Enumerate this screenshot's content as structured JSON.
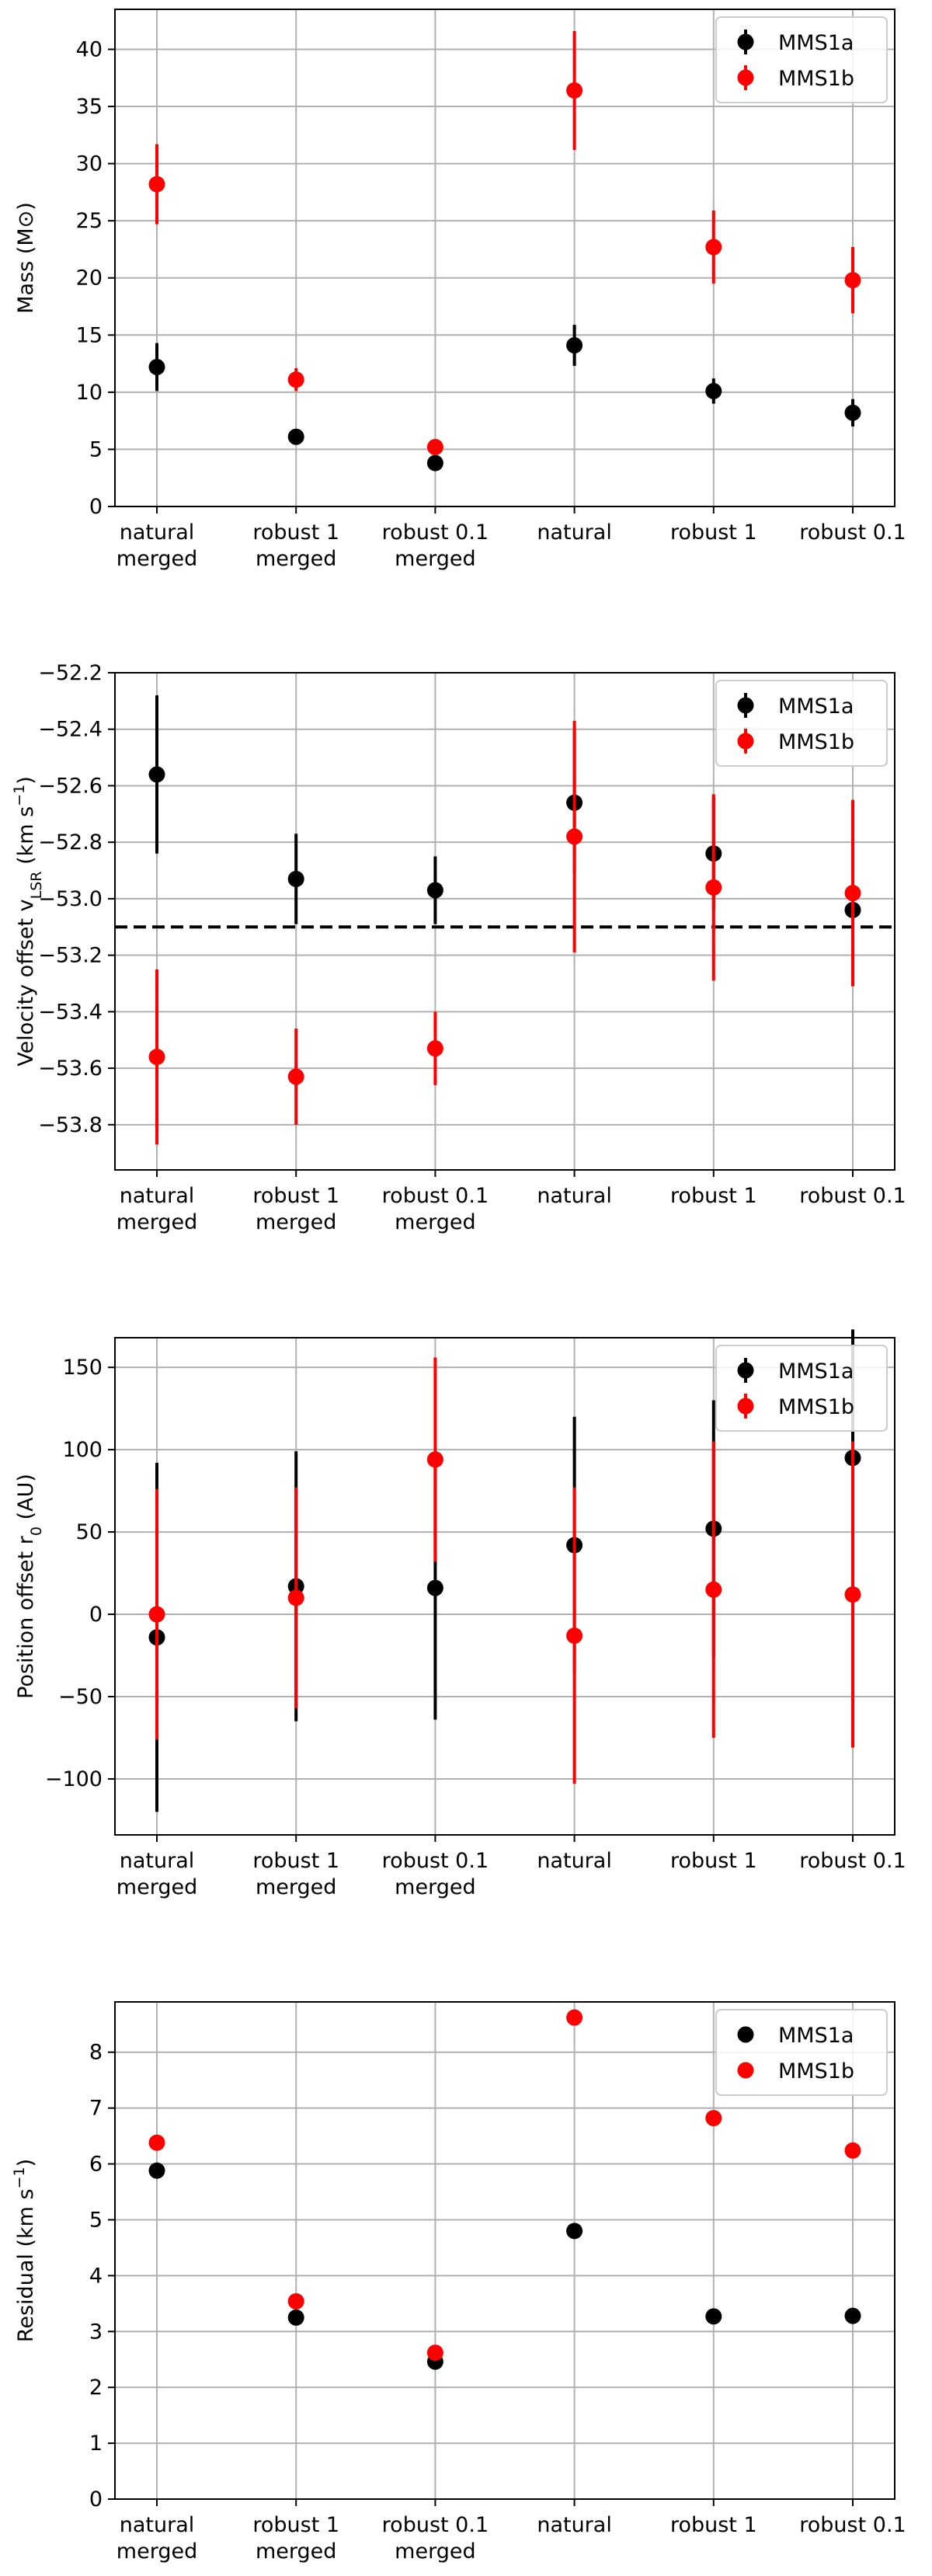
{
  "colors": {
    "MMS1a": "#000000",
    "MMS1b": "#ff0000",
    "grid": "#b0b0b0",
    "hline": "#000000"
  },
  "chart_data": [
    {
      "type": "scatter",
      "id": "mass",
      "title": "",
      "ylabel": "Mass (M⊙)",
      "categories": [
        [
          "natural",
          "merged"
        ],
        [
          "robust 1",
          "merged"
        ],
        [
          "robust 0.1",
          "merged"
        ],
        [
          "natural"
        ],
        [
          "robust 1"
        ],
        [
          "robust 0.1"
        ]
      ],
      "ylim": [
        0,
        43.5
      ],
      "yticks": [
        0,
        5,
        10,
        15,
        20,
        25,
        30,
        35,
        40
      ],
      "yticklabels": [
        "0",
        "5",
        "10",
        "15",
        "20",
        "25",
        "30",
        "35",
        "40"
      ],
      "legend": {
        "position": "top-right",
        "entries": [
          "MMS1a",
          "MMS1b"
        ],
        "marker": "errorbar"
      },
      "series": [
        {
          "name": "MMS1a",
          "color": "#000000",
          "values": [
            12.2,
            6.1,
            3.8,
            14.1,
            10.1,
            8.2
          ],
          "err_low": [
            2.1,
            0.7,
            0.5,
            1.8,
            1.1,
            1.2
          ],
          "err_high": [
            2.1,
            0.7,
            0.5,
            1.8,
            1.1,
            1.2
          ]
        },
        {
          "name": "MMS1b",
          "color": "#ff0000",
          "values": [
            28.2,
            11.1,
            5.2,
            36.4,
            22.7,
            19.8
          ],
          "err_low": [
            3.5,
            1.0,
            0.6,
            5.2,
            3.2,
            2.9
          ],
          "err_high": [
            3.5,
            1.0,
            0.6,
            5.2,
            3.2,
            2.9
          ]
        }
      ]
    },
    {
      "type": "scatter",
      "id": "velocity",
      "title": "",
      "ylabel": "Velocity offset v",
      "ylabel_sub": "LSR",
      "ylabel_tail": " (km s",
      "ylabel_sup": "−1",
      "ylabel_end": ")",
      "categories": [
        [
          "natural",
          "merged"
        ],
        [
          "robust 1",
          "merged"
        ],
        [
          "robust 0.1",
          "merged"
        ],
        [
          "natural"
        ],
        [
          "robust 1"
        ],
        [
          "robust 0.1"
        ]
      ],
      "ylim": [
        -53.96,
        -52.2
      ],
      "yticks": [
        -53.8,
        -53.6,
        -53.4,
        -53.2,
        -53.0,
        -52.8,
        -52.6,
        -52.4,
        -52.2
      ],
      "yticklabels": [
        "−53.8",
        "−53.6",
        "−53.4",
        "−53.2",
        "−53.0",
        "−52.8",
        "−52.6",
        "−52.4",
        "−52.2"
      ],
      "hline": -53.1,
      "legend": {
        "position": "top-right",
        "entries": [
          "MMS1a",
          "MMS1b"
        ],
        "marker": "errorbar"
      },
      "series": [
        {
          "name": "MMS1a",
          "color": "#000000",
          "values": [
            -52.56,
            -52.93,
            -52.97,
            -52.66,
            -52.84,
            -53.04
          ],
          "err_low": [
            0.28,
            0.16,
            0.12,
            0.25,
            0.2,
            0.15
          ],
          "err_high": [
            0.28,
            0.16,
            0.12,
            0.25,
            0.2,
            0.15
          ]
        },
        {
          "name": "MMS1b",
          "color": "#ff0000",
          "values": [
            -53.56,
            -53.63,
            -53.53,
            -52.78,
            -52.96,
            -52.98
          ],
          "err_low": [
            0.31,
            0.17,
            0.13,
            0.41,
            0.33,
            0.33
          ],
          "err_high": [
            0.31,
            0.17,
            0.13,
            0.41,
            0.33,
            0.33
          ]
        }
      ]
    },
    {
      "type": "scatter",
      "id": "position",
      "title": "",
      "ylabel": "Position offset r",
      "ylabel_sub": "0",
      "ylabel_tail": " (AU)",
      "categories": [
        [
          "natural",
          "merged"
        ],
        [
          "robust 1",
          "merged"
        ],
        [
          "robust 0.1",
          "merged"
        ],
        [
          "natural"
        ],
        [
          "robust 1"
        ],
        [
          "robust 0.1"
        ]
      ],
      "ylim": [
        -134,
        168
      ],
      "yticks": [
        -100,
        -50,
        0,
        50,
        100,
        150
      ],
      "yticklabels": [
        "−100",
        "−50",
        "0",
        "50",
        "100",
        "150"
      ],
      "legend": {
        "position": "top-right",
        "entries": [
          "MMS1a",
          "MMS1b"
        ],
        "marker": "errorbar"
      },
      "series": [
        {
          "name": "MMS1a",
          "color": "#000000",
          "values": [
            -14,
            17,
            16,
            42,
            52,
            95
          ],
          "err_low": [
            106,
            82,
            80,
            78,
            78,
            78
          ],
          "err_high": [
            106,
            82,
            80,
            78,
            78,
            78
          ]
        },
        {
          "name": "MMS1b",
          "color": "#ff0000",
          "values": [
            0,
            10,
            94,
            -13,
            15,
            12
          ],
          "err_low": [
            76,
            67,
            62,
            90,
            90,
            93
          ],
          "err_high": [
            76,
            67,
            62,
            90,
            90,
            93
          ]
        }
      ]
    },
    {
      "type": "scatter",
      "id": "residual",
      "title": "",
      "ylabel": "Residual (km s",
      "ylabel_sup": "−1",
      "ylabel_end": ")",
      "categories": [
        [
          "natural",
          "merged"
        ],
        [
          "robust 1",
          "merged"
        ],
        [
          "robust 0.1",
          "merged"
        ],
        [
          "natural"
        ],
        [
          "robust 1"
        ],
        [
          "robust 0.1"
        ]
      ],
      "ylim": [
        0,
        8.9
      ],
      "yticks": [
        0,
        1,
        2,
        3,
        4,
        5,
        6,
        7,
        8
      ],
      "yticklabels": [
        "0",
        "1",
        "2",
        "3",
        "4",
        "5",
        "6",
        "7",
        "8"
      ],
      "legend": {
        "position": "top-right",
        "entries": [
          "MMS1a",
          "MMS1b"
        ],
        "marker": "dot"
      },
      "series": [
        {
          "name": "MMS1a",
          "color": "#000000",
          "values": [
            5.88,
            3.25,
            2.46,
            4.8,
            3.27,
            3.28
          ]
        },
        {
          "name": "MMS1b",
          "color": "#ff0000",
          "values": [
            6.38,
            3.54,
            2.62,
            8.62,
            6.82,
            6.24
          ]
        }
      ]
    }
  ]
}
